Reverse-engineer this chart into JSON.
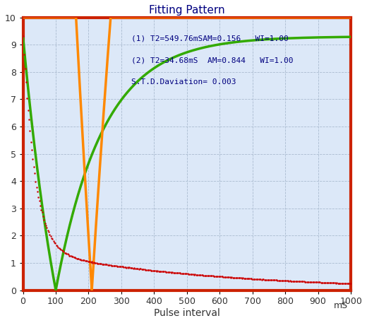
{
  "title": "Fitting Pattern",
  "xlabel": "Pulse interval",
  "xlabel_unit": "mS",
  "xlim": [
    0,
    1000
  ],
  "ylim": [
    0,
    10
  ],
  "xticks": [
    0,
    100,
    200,
    300,
    400,
    500,
    600,
    700,
    800,
    900,
    1000
  ],
  "yticks": [
    0,
    1,
    2,
    3,
    4,
    5,
    6,
    7,
    8,
    9,
    10
  ],
  "annotation1": "(1) T2=549.76mSAM=0.156   WI=1.00",
  "annotation2": "(2) T2=34.68mS  AM=0.844   WI=1.00",
  "annotation3": "S.T.D.Daviation= 0.003",
  "T2_1": 549.76,
  "AM_1": 0.156,
  "T2_2": 34.68,
  "AM_2": 0.844,
  "M0_red": 9.5,
  "A_green": 9.3,
  "tau_green_zero": 100.0,
  "A_orange": 58.0,
  "tau_orange_zero": 210.0,
  "color_data": "#cc0000",
  "color_green": "#33aa00",
  "color_orange": "#ff8800",
  "color_bg_fig": "#ffffff",
  "color_bg_plot": "#dce8f8",
  "color_border": "#cc2200",
  "color_grid": "#aabbd0",
  "color_title": "#000080",
  "color_annot": "#000080",
  "color_axis": "#333333",
  "title_fontsize": 11,
  "annot_fontsize": 8,
  "tick_fontsize": 9,
  "xlabel_fontsize": 10
}
